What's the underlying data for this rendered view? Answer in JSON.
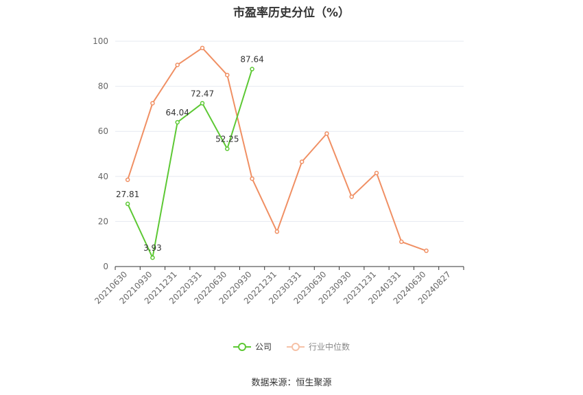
{
  "chart_data": {
    "type": "line",
    "title": "市盈率历史分位（%）",
    "categories": [
      "20210630",
      "20210930",
      "20211231",
      "20220331",
      "20220630",
      "20220930",
      "20221231",
      "20230331",
      "20230630",
      "20230930",
      "20231231",
      "20240331",
      "20240630",
      "20240827"
    ],
    "ylim": [
      0,
      100
    ],
    "yticks": [
      0,
      20,
      40,
      60,
      80,
      100
    ],
    "grid": true,
    "legend_position": "bottom",
    "series": [
      {
        "name": "公司",
        "color": "#5cc833",
        "values": [
          27.81,
          3.93,
          64.04,
          72.47,
          52.25,
          87.64,
          null,
          null,
          null,
          null,
          null,
          null,
          null,
          null
        ],
        "labels": [
          "27.81",
          "3.93",
          "64.04",
          "72.47",
          "52.25",
          "87.64"
        ]
      },
      {
        "name": "行业中位数",
        "color": "#f08f63",
        "values": [
          38.5,
          72.5,
          89.5,
          97,
          85,
          39,
          15.5,
          46.5,
          59,
          31,
          41.5,
          11,
          7,
          null
        ]
      }
    ]
  },
  "source_text": "数据来源：恒生聚源"
}
